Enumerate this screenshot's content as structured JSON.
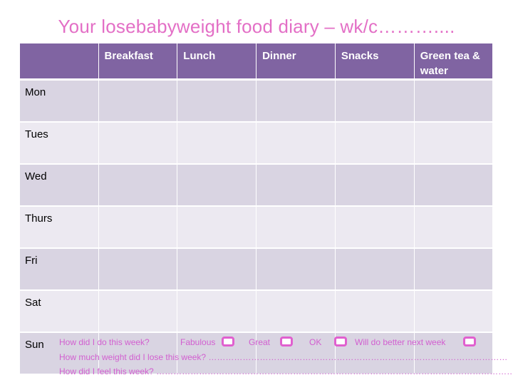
{
  "title": "Your losebabyweight food diary – wk/c………....",
  "columns": [
    "",
    "Breakfast",
    "Lunch",
    "Dinner",
    "Snacks",
    "Green tea & water"
  ],
  "days": [
    "Mon",
    "Tues",
    "Wed",
    "Thurs",
    "Fri",
    "Sat",
    "Sun"
  ],
  "week_question": {
    "label": "How did I do this week?",
    "options": [
      "Fabulous",
      "Great",
      "OK",
      "Will do better next week"
    ]
  },
  "weight_question": "How much weight did I lose this week? ……………………………………………………………………………………………",
  "feel_question": "How did I feel this week? ………………………………………………………………………………………………………………",
  "colors": {
    "title": "#e36fc6",
    "header_bg": "#8064a2",
    "row_dark": "#d9d4e2",
    "row_light": "#ece9f1",
    "footer_text": "#d25fd0",
    "checkbox": "#e060cf"
  }
}
